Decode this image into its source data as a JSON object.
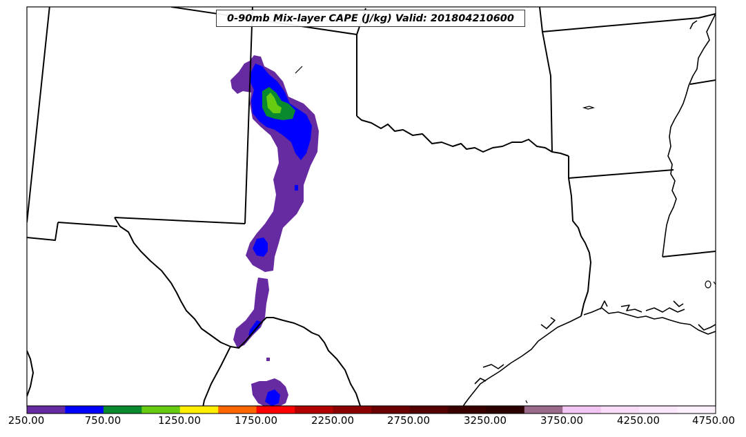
{
  "title": "0-90mb Mix-layer CAPE (J/kg) Valid: 201804210600",
  "colorbar": {
    "colors": [
      "#662ba0",
      "#0000ff",
      "#0a8a2e",
      "#66cc11",
      "#ffee00",
      "#ff6600",
      "#ff0000",
      "#b30000",
      "#8b0000",
      "#6b0000",
      "#550000",
      "#3a0000",
      "#2a0000",
      "#9a6a8a",
      "#f2c5f2",
      "#f8dcf8",
      "#fbe7fb",
      "#fdf0fd"
    ],
    "labels": [
      "250.00",
      "750.00",
      "1250.00",
      "1750.00",
      "2250.00",
      "2750.00",
      "3250.00",
      "3750.00",
      "4250.00",
      "4750.00"
    ]
  },
  "cape_fill_colors": {
    "level_250": "#662ba0",
    "level_500": "#0000ff",
    "level_750": "#0a8a2e",
    "level_1000": "#66cc11"
  },
  "map": {
    "border_color": "#000000",
    "background": "#ffffff"
  }
}
